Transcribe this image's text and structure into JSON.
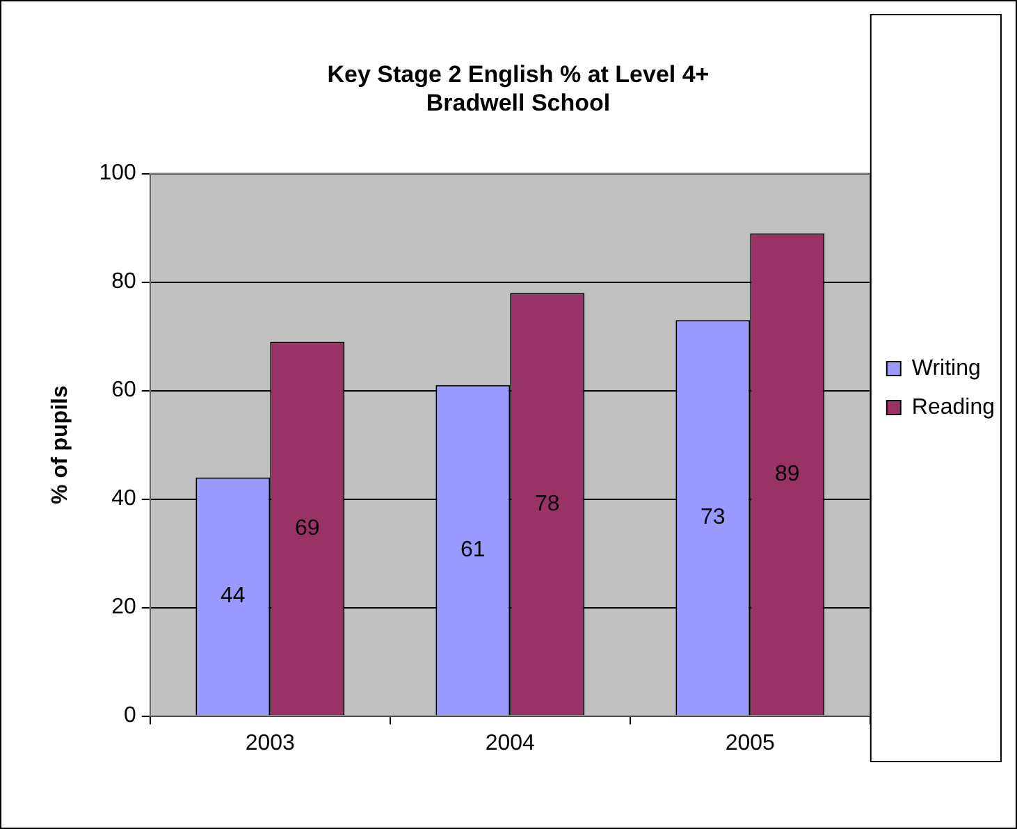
{
  "chart_data": {
    "type": "bar",
    "title": "Key Stage 2 English % at Level 4+",
    "subtitle": "Bradwell School",
    "ylabel": "% of pupils",
    "categories": [
      "2003",
      "2004",
      "2005"
    ],
    "series": [
      {
        "name": "Writing",
        "color": "#9999ff",
        "values": [
          44,
          61,
          73
        ]
      },
      {
        "name": "Reading",
        "color": "#993366",
        "values": [
          69,
          78,
          89
        ]
      }
    ],
    "ylim": [
      0,
      100
    ],
    "yticks": [
      0,
      20,
      40,
      60,
      80,
      100
    ],
    "grid": "y",
    "legend": "right",
    "data_labels": true
  }
}
